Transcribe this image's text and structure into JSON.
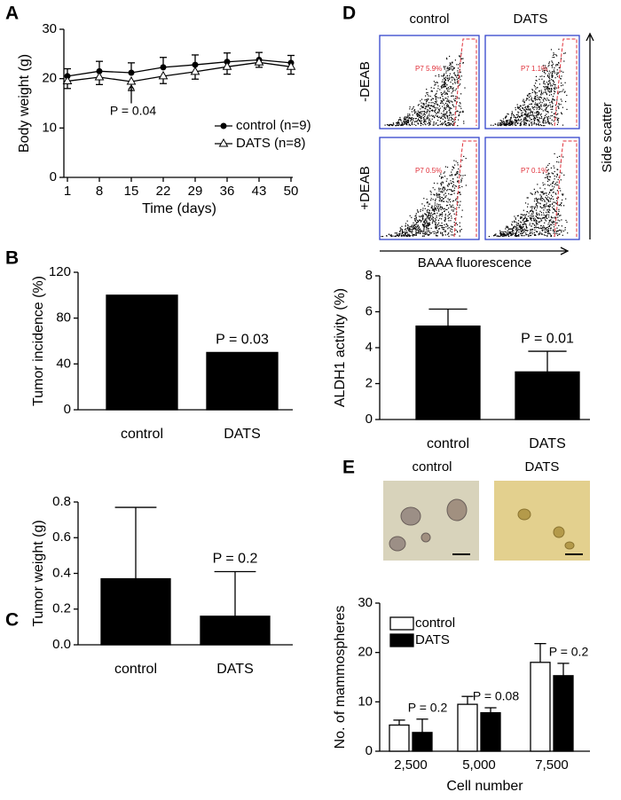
{
  "panel_labels": [
    "A",
    "B",
    "C",
    "D",
    "E"
  ],
  "chart_data": [
    {
      "type": "line",
      "x": [
        1,
        8,
        15,
        22,
        29,
        36,
        43,
        50
      ],
      "xlim": [
        1,
        50
      ],
      "xticks": [
        1,
        8,
        15,
        22,
        29,
        36,
        43,
        50
      ],
      "ylim": [
        0,
        30
      ],
      "yticks": [
        0,
        10,
        20,
        30
      ],
      "x_label": "Time  (days)",
      "y_label": "Body weight (g)",
      "annotation": "P = 0.04",
      "legend": "bottom-right",
      "series": [
        {
          "name": "control (n=9)",
          "color": "#000000",
          "marker": "filled-circle",
          "values": [
            20.5,
            21.5,
            21.2,
            22.3,
            22.8,
            23.4,
            23.8,
            23.2
          ],
          "errors": [
            1.5,
            2,
            2,
            2,
            2,
            1.8,
            1.5,
            1.5
          ]
        },
        {
          "name": "DATS (n=8)",
          "color": "#000000",
          "marker": "open-triangle",
          "values": [
            19.5,
            20.3,
            19.4,
            20.5,
            21.4,
            22.4,
            23.3,
            22.4
          ],
          "errors": [
            1.5,
            1.5,
            1.8,
            1.5,
            1.5,
            1.5,
            1,
            1.5
          ]
        }
      ]
    },
    {
      "type": "bar",
      "categories": [
        "control",
        "DATS"
      ],
      "values": [
        100,
        50
      ],
      "color": "#000000",
      "ylim": [
        0,
        120
      ],
      "yticks": [
        0,
        40,
        80,
        120
      ],
      "y_label": "Tumor incidence (%)",
      "annotation": "P = 0.03"
    },
    {
      "type": "bar",
      "categories": [
        "control",
        "DATS"
      ],
      "values": [
        0.37,
        0.16
      ],
      "errors": [
        0.4,
        0.25
      ],
      "color": "#000000",
      "ylim": [
        0,
        0.8
      ],
      "yticks": [
        {
          "value": 0,
          "label": "0.0"
        },
        0.2,
        0.4,
        0.6,
        0.8
      ],
      "y_label": "Tumor weight (g)",
      "annotation": "P = 0.2"
    },
    {
      "type": "bar",
      "categories": [
        "control",
        "DATS"
      ],
      "values": [
        5.2,
        2.65
      ],
      "errors": [
        0.95,
        1.15
      ],
      "color": "#000000",
      "ylim": [
        0,
        8
      ],
      "yticks": [
        0,
        2,
        4,
        6,
        8
      ],
      "y_label": "ALDH1 activity (%)",
      "annotation": "P = 0.01"
    },
    {
      "type": "bar",
      "categories": [
        "2,500",
        "5,000",
        "7,500"
      ],
      "ylim": [
        0,
        30
      ],
      "yticks": [
        0,
        10,
        20,
        30
      ],
      "x_label": "Cell number",
      "y_label": "No. of mammospheres",
      "legend": "top-left",
      "annotations": [
        "P = 0.2",
        "P = 0.08",
        "P = 0.2"
      ],
      "series": [
        {
          "name": "control",
          "color": "#ffffff",
          "values": [
            5.3,
            9.5,
            18.0
          ],
          "errors": [
            1.0,
            1.6,
            3.8
          ]
        },
        {
          "name": "DATS",
          "color": "#000000",
          "values": [
            3.8,
            7.8,
            15.3
          ],
          "errors": [
            2.7,
            1.0,
            2.5
          ]
        }
      ]
    }
  ],
  "flow_panel": {
    "columns": [
      "control",
      "DATS"
    ],
    "rows": [
      "-DEAB",
      "+DEAB"
    ],
    "gates": [
      "P7 5.9%",
      "P7 1.1%",
      "P7 0.5%",
      "P7 0.1%"
    ],
    "x_label": "BAAA fluorescence",
    "y_label": "Side scatter"
  },
  "micrograph_panel": {
    "columns": [
      "control",
      "DATS"
    ]
  }
}
